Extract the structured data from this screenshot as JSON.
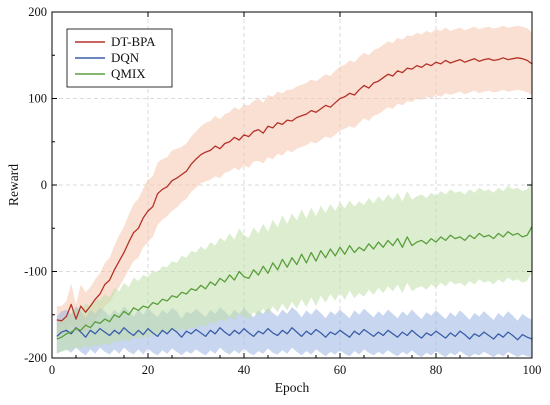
{
  "chart_data": {
    "type": "line",
    "xlabel": "Epoch",
    "ylabel": "Reward",
    "xlim": [
      0,
      100
    ],
    "ylim": [
      -200,
      200
    ],
    "xticks": [
      0,
      20,
      40,
      60,
      80,
      100
    ],
    "yticks": [
      -200,
      -100,
      0,
      100,
      200
    ],
    "grid": true,
    "legend_position": "top-left",
    "series": [
      {
        "name": "DT-BPA",
        "color": "#b5322a",
        "band_color": "#f6c6ad",
        "x": [
          1,
          2,
          3,
          4,
          5,
          6,
          7,
          8,
          9,
          10,
          11,
          12,
          13,
          14,
          15,
          16,
          17,
          18,
          19,
          20,
          21,
          22,
          23,
          24,
          25,
          26,
          27,
          28,
          29,
          30,
          31,
          32,
          33,
          34,
          35,
          36,
          37,
          38,
          39,
          40,
          41,
          42,
          43,
          44,
          45,
          46,
          47,
          48,
          49,
          50,
          51,
          52,
          53,
          54,
          55,
          56,
          57,
          58,
          59,
          60,
          61,
          62,
          63,
          64,
          65,
          66,
          67,
          68,
          69,
          70,
          71,
          72,
          73,
          74,
          75,
          76,
          77,
          78,
          79,
          80,
          81,
          82,
          83,
          84,
          85,
          86,
          87,
          88,
          89,
          90,
          91,
          92,
          93,
          94,
          95,
          96,
          97,
          98,
          99,
          100
        ],
        "y": [
          -156,
          -157,
          -152,
          -138,
          -155,
          -140,
          -147,
          -140,
          -132,
          -126,
          -115,
          -110,
          -98,
          -88,
          -78,
          -66,
          -55,
          -50,
          -38,
          -30,
          -25,
          -10,
          -5,
          -2,
          5,
          8,
          12,
          16,
          24,
          30,
          35,
          38,
          40,
          45,
          42,
          48,
          50,
          55,
          52,
          58,
          56,
          62,
          64,
          60,
          68,
          66,
          72,
          70,
          75,
          74,
          78,
          80,
          82,
          86,
          84,
          88,
          92,
          90,
          95,
          100,
          102,
          106,
          104,
          110,
          115,
          112,
          118,
          120,
          124,
          128,
          126,
          132,
          130,
          135,
          134,
          138,
          136,
          140,
          138,
          142,
          140,
          144,
          141,
          143,
          145,
          142,
          144,
          146,
          143,
          145,
          146,
          144,
          145,
          147,
          145,
          146,
          147,
          146,
          144,
          140
        ],
        "lower": [
          -172,
          -172,
          -170,
          -162,
          -172,
          -165,
          -170,
          -162,
          -155,
          -150,
          -140,
          -136,
          -126,
          -118,
          -108,
          -98,
          -88,
          -84,
          -72,
          -66,
          -60,
          -46,
          -40,
          -36,
          -30,
          -26,
          -20,
          -16,
          -8,
          -3,
          2,
          4,
          6,
          10,
          8,
          14,
          16,
          20,
          17,
          23,
          20,
          27,
          28,
          25,
          32,
          30,
          36,
          34,
          40,
          38,
          42,
          44,
          46,
          50,
          48,
          52,
          56,
          54,
          58,
          63,
          65,
          68,
          66,
          72,
          77,
          74,
          80,
          82,
          86,
          90,
          88,
          94,
          92,
          97,
          96,
          100,
          98,
          102,
          100,
          104,
          102,
          106,
          104,
          106,
          108,
          105,
          107,
          109,
          106,
          108,
          109,
          107,
          108,
          110,
          108,
          109,
          110,
          109,
          107,
          104
        ],
        "upper": [
          -140,
          -140,
          -134,
          -114,
          -138,
          -115,
          -124,
          -118,
          -109,
          -102,
          -90,
          -84,
          -70,
          -58,
          -48,
          -34,
          -22,
          -16,
          -4,
          6,
          10,
          26,
          30,
          32,
          40,
          42,
          44,
          48,
          56,
          62,
          68,
          72,
          74,
          80,
          76,
          82,
          84,
          90,
          87,
          93,
          92,
          97,
          100,
          95,
          104,
          102,
          108,
          106,
          110,
          110,
          114,
          116,
          118,
          122,
          120,
          124,
          128,
          126,
          132,
          137,
          139,
          144,
          142,
          148,
          153,
          150,
          156,
          158,
          162,
          166,
          164,
          170,
          168,
          173,
          172,
          176,
          174,
          178,
          176,
          180,
          178,
          182,
          178,
          180,
          182,
          179,
          181,
          183,
          180,
          182,
          183,
          181,
          182,
          184,
          182,
          183,
          184,
          183,
          181,
          176
        ]
      },
      {
        "name": "DQN",
        "color": "#3a5fa8",
        "band_color": "#9db4e3",
        "x": [
          1,
          2,
          3,
          4,
          5,
          6,
          7,
          8,
          9,
          10,
          11,
          12,
          13,
          14,
          15,
          16,
          17,
          18,
          19,
          20,
          21,
          22,
          23,
          24,
          25,
          26,
          27,
          28,
          29,
          30,
          31,
          32,
          33,
          34,
          35,
          36,
          37,
          38,
          39,
          40,
          41,
          42,
          43,
          44,
          45,
          46,
          47,
          48,
          49,
          50,
          51,
          52,
          53,
          54,
          55,
          56,
          57,
          58,
          59,
          60,
          61,
          62,
          63,
          64,
          65,
          66,
          67,
          68,
          69,
          70,
          71,
          72,
          73,
          74,
          75,
          76,
          77,
          78,
          79,
          80,
          81,
          82,
          83,
          84,
          85,
          86,
          87,
          88,
          89,
          90,
          91,
          92,
          93,
          94,
          95,
          96,
          97,
          98,
          99,
          100
        ],
        "y": [
          -175,
          -170,
          -168,
          -172,
          -165,
          -170,
          -176,
          -168,
          -172,
          -166,
          -170,
          -174,
          -168,
          -172,
          -165,
          -170,
          -174,
          -168,
          -173,
          -166,
          -171,
          -175,
          -168,
          -172,
          -166,
          -170,
          -176,
          -169,
          -172,
          -167,
          -171,
          -175,
          -168,
          -172,
          -165,
          -170,
          -174,
          -168,
          -172,
          -166,
          -171,
          -175,
          -169,
          -172,
          -166,
          -171,
          -174,
          -168,
          -172,
          -165,
          -170,
          -175,
          -169,
          -173,
          -167,
          -171,
          -176,
          -170,
          -173,
          -168,
          -172,
          -176,
          -169,
          -173,
          -167,
          -171,
          -175,
          -170,
          -174,
          -168,
          -172,
          -176,
          -170,
          -174,
          -168,
          -173,
          -177,
          -171,
          -174,
          -169,
          -173,
          -177,
          -171,
          -175,
          -169,
          -173,
          -178,
          -172,
          -175,
          -170,
          -174,
          -178,
          -172,
          -176,
          -170,
          -174,
          -179,
          -173,
          -176,
          -178
        ],
        "lower": [
          -195,
          -192,
          -190,
          -194,
          -188,
          -193,
          -197,
          -190,
          -195,
          -188,
          -193,
          -196,
          -190,
          -195,
          -188,
          -193,
          -196,
          -190,
          -196,
          -189,
          -194,
          -197,
          -191,
          -195,
          -189,
          -193,
          -197,
          -192,
          -195,
          -190,
          -194,
          -197,
          -191,
          -195,
          -188,
          -193,
          -196,
          -191,
          -195,
          -189,
          -194,
          -197,
          -192,
          -195,
          -189,
          -194,
          -196,
          -191,
          -195,
          -188,
          -193,
          -197,
          -192,
          -196,
          -190,
          -194,
          -198,
          -193,
          -196,
          -191,
          -195,
          -198,
          -192,
          -196,
          -190,
          -194,
          -197,
          -193,
          -196,
          -191,
          -195,
          -198,
          -193,
          -196,
          -191,
          -196,
          -199,
          -194,
          -197,
          -192,
          -196,
          -199,
          -194,
          -197,
          -192,
          -196,
          -199,
          -195,
          -197,
          -193,
          -196,
          -199,
          -195,
          -198,
          -193,
          -196,
          -199,
          -196,
          -198,
          -199
        ],
        "upper": [
          -152,
          -146,
          -144,
          -150,
          -140,
          -146,
          -154,
          -144,
          -149,
          -142,
          -146,
          -152,
          -144,
          -149,
          -140,
          -146,
          -152,
          -144,
          -150,
          -142,
          -148,
          -153,
          -144,
          -149,
          -142,
          -146,
          -155,
          -146,
          -149,
          -143,
          -148,
          -153,
          -144,
          -149,
          -141,
          -146,
          -152,
          -144,
          -149,
          -142,
          -148,
          -153,
          -145,
          -149,
          -142,
          -148,
          -152,
          -144,
          -149,
          -141,
          -146,
          -153,
          -145,
          -150,
          -143,
          -148,
          -154,
          -146,
          -150,
          -144,
          -149,
          -154,
          -145,
          -150,
          -143,
          -148,
          -153,
          -146,
          -151,
          -144,
          -149,
          -154,
          -146,
          -151,
          -144,
          -150,
          -155,
          -147,
          -151,
          -145,
          -150,
          -155,
          -147,
          -152,
          -145,
          -150,
          -156,
          -148,
          -152,
          -146,
          -151,
          -156,
          -148,
          -153,
          -146,
          -151,
          -157,
          -149,
          -153,
          -156
        ]
      },
      {
        "name": "QMIX",
        "color": "#5a9e3e",
        "band_color": "#bfe0a8",
        "x": [
          1,
          2,
          3,
          4,
          5,
          6,
          7,
          8,
          9,
          10,
          11,
          12,
          13,
          14,
          15,
          16,
          17,
          18,
          19,
          20,
          21,
          22,
          23,
          24,
          25,
          26,
          27,
          28,
          29,
          30,
          31,
          32,
          33,
          34,
          35,
          36,
          37,
          38,
          39,
          40,
          41,
          42,
          43,
          44,
          45,
          46,
          47,
          48,
          49,
          50,
          51,
          52,
          53,
          54,
          55,
          56,
          57,
          58,
          59,
          60,
          61,
          62,
          63,
          64,
          65,
          66,
          67,
          68,
          69,
          70,
          71,
          72,
          73,
          74,
          75,
          76,
          77,
          78,
          79,
          80,
          81,
          82,
          83,
          84,
          85,
          86,
          87,
          88,
          89,
          90,
          91,
          92,
          93,
          94,
          95,
          96,
          97,
          98,
          99,
          100
        ],
        "y": [
          -178,
          -176,
          -172,
          -170,
          -166,
          -168,
          -162,
          -165,
          -158,
          -160,
          -155,
          -158,
          -150,
          -153,
          -146,
          -150,
          -142,
          -145,
          -140,
          -142,
          -136,
          -138,
          -132,
          -134,
          -128,
          -130,
          -124,
          -126,
          -120,
          -122,
          -116,
          -120,
          -112,
          -116,
          -108,
          -112,
          -104,
          -110,
          -100,
          -106,
          -108,
          -98,
          -104,
          -94,
          -102,
          -90,
          -98,
          -86,
          -95,
          -84,
          -92,
          -80,
          -90,
          -78,
          -88,
          -76,
          -84,
          -74,
          -82,
          -72,
          -80,
          -70,
          -78,
          -72,
          -76,
          -68,
          -74,
          -66,
          -72,
          -64,
          -70,
          -62,
          -72,
          -60,
          -70,
          -66,
          -64,
          -68,
          -62,
          -66,
          -60,
          -64,
          -58,
          -62,
          -60,
          -64,
          -58,
          -62,
          -56,
          -60,
          -58,
          -62,
          -56,
          -60,
          -54,
          -58,
          -56,
          -60,
          -58,
          -48
        ],
        "lower": [
          -194,
          -193,
          -191,
          -190,
          -188,
          -189,
          -186,
          -188,
          -184,
          -186,
          -183,
          -185,
          -180,
          -182,
          -178,
          -181,
          -176,
          -178,
          -175,
          -177,
          -172,
          -174,
          -170,
          -172,
          -168,
          -170,
          -166,
          -168,
          -164,
          -166,
          -161,
          -164,
          -158,
          -161,
          -155,
          -158,
          -152,
          -156,
          -149,
          -153,
          -155,
          -147,
          -151,
          -143,
          -150,
          -140,
          -147,
          -137,
          -145,
          -135,
          -143,
          -132,
          -141,
          -130,
          -140,
          -128,
          -136,
          -126,
          -134,
          -124,
          -133,
          -122,
          -131,
          -125,
          -129,
          -121,
          -127,
          -119,
          -125,
          -117,
          -123,
          -115,
          -125,
          -113,
          -123,
          -119,
          -117,
          -121,
          -115,
          -119,
          -113,
          -117,
          -111,
          -115,
          -113,
          -117,
          -111,
          -115,
          -109,
          -113,
          -111,
          -115,
          -109,
          -113,
          -107,
          -111,
          -109,
          -113,
          -111,
          -100
        ],
        "upper": [
          -160,
          -157,
          -151,
          -148,
          -142,
          -145,
          -137,
          -140,
          -131,
          -133,
          -126,
          -130,
          -119,
          -123,
          -113,
          -118,
          -107,
          -111,
          -104,
          -106,
          -99,
          -101,
          -94,
          -95,
          -88,
          -90,
          -82,
          -84,
          -76,
          -78,
          -71,
          -75,
          -66,
          -70,
          -61,
          -65,
          -56,
          -63,
          -50,
          -58,
          -61,
          -49,
          -56,
          -45,
          -54,
          -40,
          -49,
          -35,
          -45,
          -33,
          -41,
          -28,
          -39,
          -26,
          -36,
          -24,
          -32,
          -22,
          -30,
          -20,
          -27,
          -18,
          -25,
          -19,
          -23,
          -15,
          -21,
          -13,
          -19,
          -11,
          -17,
          -9,
          -19,
          -7,
          -17,
          -13,
          -11,
          -15,
          -9,
          -13,
          -7,
          -11,
          -5,
          -9,
          -7,
          -11,
          -5,
          -9,
          -3,
          -7,
          -5,
          -9,
          -3,
          -7,
          -1,
          -5,
          -3,
          -7,
          -5,
          4
        ]
      }
    ]
  }
}
